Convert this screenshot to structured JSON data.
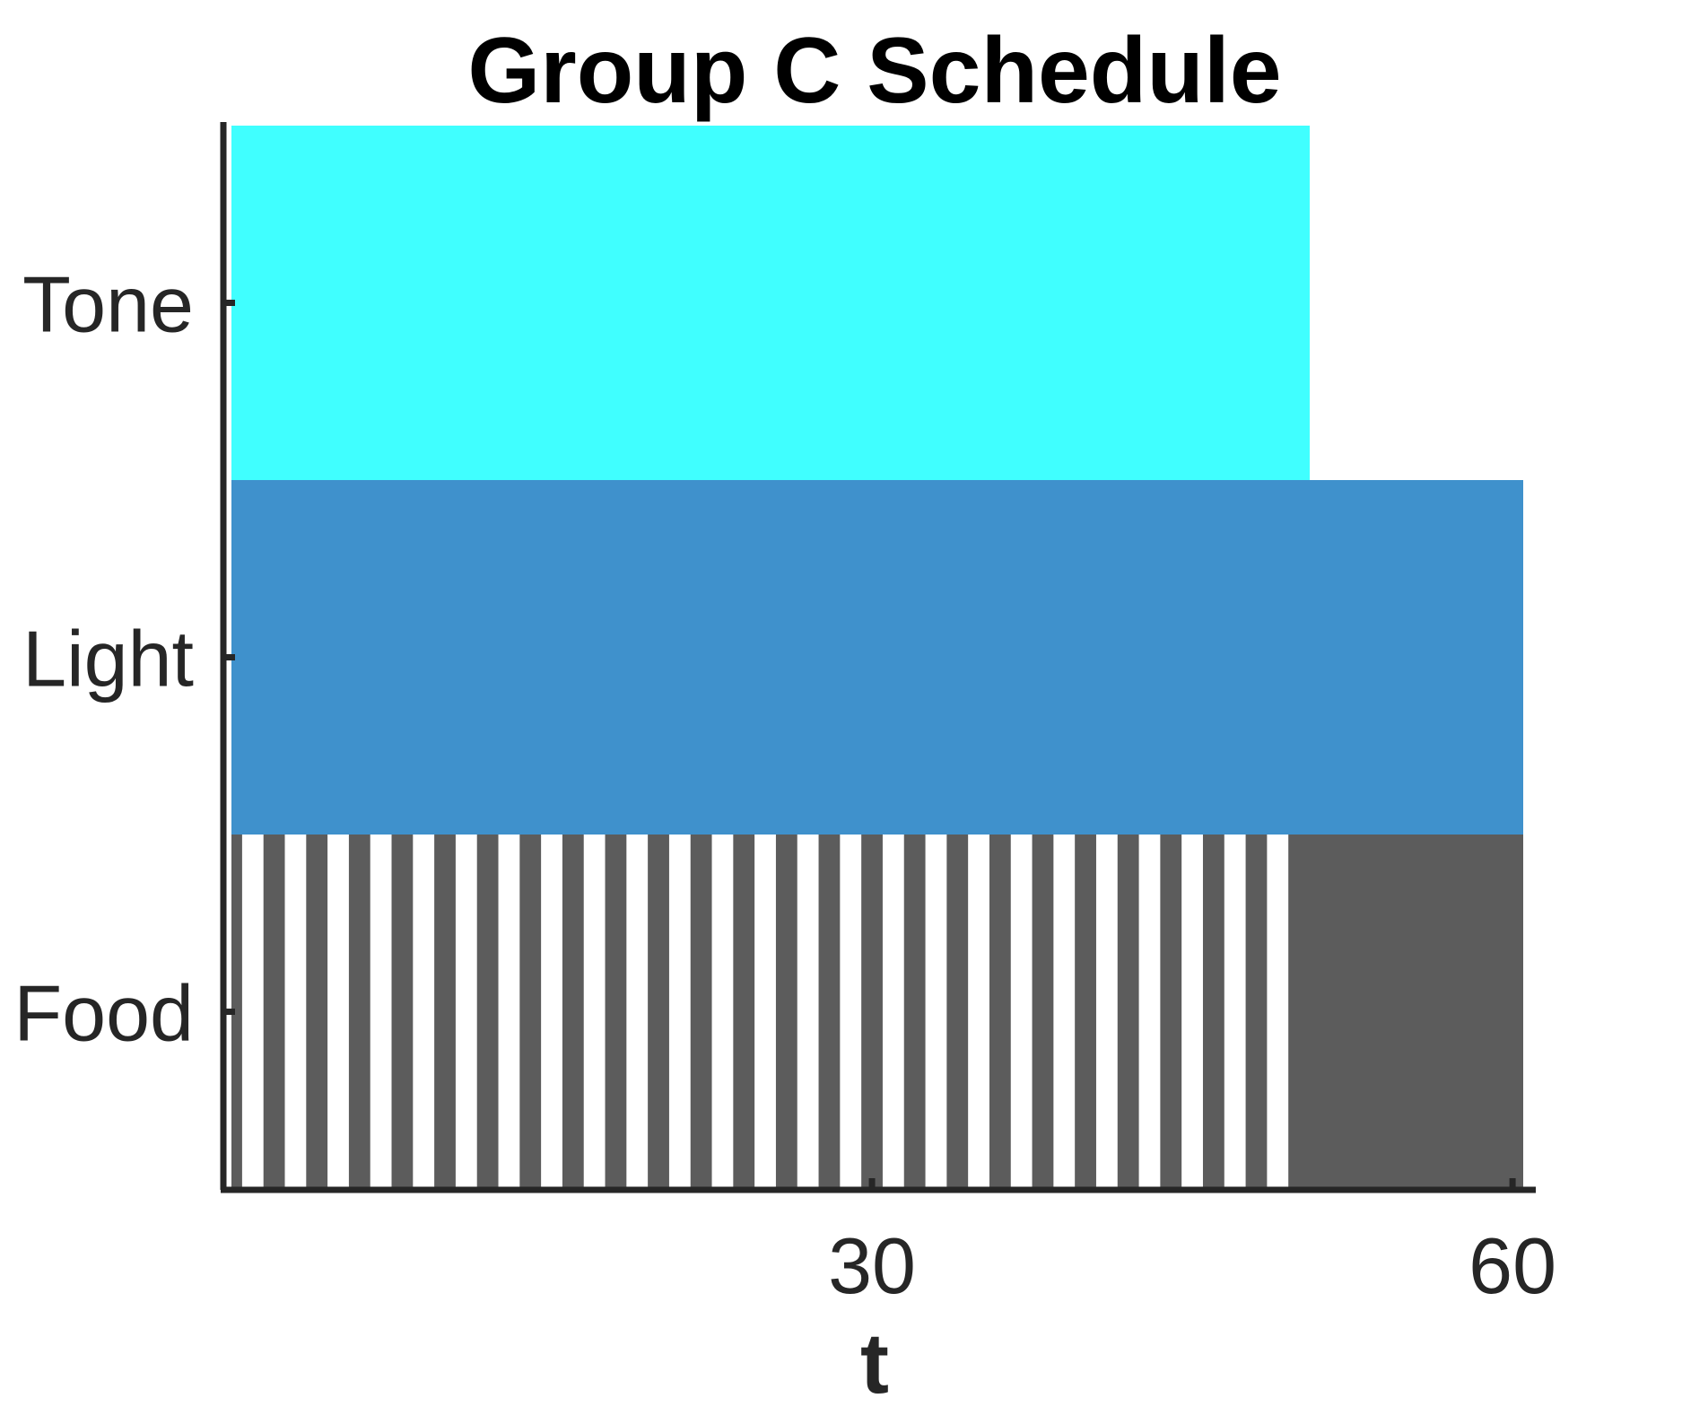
{
  "chart_data": {
    "type": "bar",
    "title": "Group C Schedule",
    "xlabel": "t",
    "ylabel": "",
    "xlim": [
      0,
      60.5
    ],
    "xticks": [
      30,
      60
    ],
    "categories": [
      "Tone",
      "Light",
      "Food"
    ],
    "grid": false,
    "legend": "none",
    "series": [
      {
        "category": "Tone",
        "color": "#40ffff",
        "segments": [
          [
            0,
            50.5
          ]
        ]
      },
      {
        "category": "Light",
        "color": "#3f91cc",
        "segments": [
          [
            0,
            60.5
          ]
        ]
      },
      {
        "category": "Food",
        "color": "#5c5c5c",
        "segments": [
          [
            0,
            0.5
          ],
          [
            1.5,
            2.5
          ],
          [
            3.5,
            4.5
          ],
          [
            5.5,
            6.5
          ],
          [
            7.5,
            8.5
          ],
          [
            9.5,
            10.5
          ],
          [
            11.5,
            12.5
          ],
          [
            13.5,
            14.5
          ],
          [
            15.5,
            16.5
          ],
          [
            17.5,
            18.5
          ],
          [
            19.5,
            20.5
          ],
          [
            21.5,
            22.5
          ],
          [
            23.5,
            24.5
          ],
          [
            25.5,
            26.5
          ],
          [
            27.5,
            28.5
          ],
          [
            29.5,
            30.5
          ],
          [
            31.5,
            32.5
          ],
          [
            33.5,
            34.5
          ],
          [
            35.5,
            36.5
          ],
          [
            37.5,
            38.5
          ],
          [
            39.5,
            40.5
          ],
          [
            41.5,
            42.5
          ],
          [
            43.5,
            44.5
          ],
          [
            45.5,
            46.5
          ],
          [
            47.5,
            48.5
          ],
          [
            49.5,
            60.5
          ]
        ]
      }
    ]
  },
  "colors": {
    "axis": "#262626",
    "title": "#000000",
    "background": "#ffffff"
  }
}
